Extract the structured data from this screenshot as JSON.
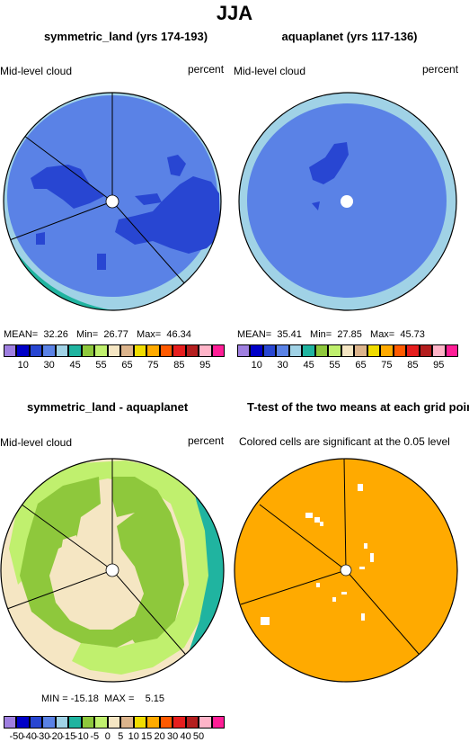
{
  "main_title": "JJA",
  "panels": [
    {
      "title": "symmetric_land (yrs 174-193)",
      "left_label": "Mid-level cloud",
      "right_label": "percent",
      "stats": {
        "mean_label": "MEAN=",
        "mean": "32.26",
        "min_label": "Min=",
        "min": "26.77",
        "max_label": "Max=",
        "max": "46.34"
      }
    },
    {
      "title": "aquaplanet (yrs 117-136)",
      "left_label": "Mid-level cloud",
      "right_label": "percent",
      "stats": {
        "mean_label": "MEAN=",
        "mean": "35.41",
        "min_label": "Min=",
        "min": "27.85",
        "max_label": "Max=",
        "max": "45.73"
      }
    },
    {
      "title": "symmetric_land - aquaplanet",
      "left_label": "Mid-level cloud",
      "right_label": "percent",
      "stats": {
        "min_label": "MIN =",
        "min": "-15.18",
        "max_label": "MAX =",
        "max": "5.15"
      }
    },
    {
      "title": "T-test of the two means at each grid point",
      "subtitle": "Colored cells are significant at the 0.05 level"
    }
  ],
  "colorbar_abs": {
    "colors": [
      "#9f7fe0",
      "#0000c8",
      "#2846d2",
      "#5a82e6",
      "#a0d2e6",
      "#20b4a0",
      "#8ec83c",
      "#c0f06e",
      "#f5e6c3",
      "#dcb48c",
      "#f0dc00",
      "#ffaa00",
      "#ff5a00",
      "#e61e1e",
      "#b41e1e",
      "#ffb4c8",
      "#ff1e96"
    ],
    "labels": [
      "10",
      "30",
      "45",
      "55",
      "65",
      "75",
      "85",
      "95"
    ]
  },
  "colorbar_diff": {
    "colors": [
      "#9f7fe0",
      "#0000c8",
      "#2846d2",
      "#5a82e6",
      "#a0d2e6",
      "#20b4a0",
      "#8ec83c",
      "#c0f06e",
      "#f5e6c3",
      "#dcb48c",
      "#f0dc00",
      "#ffaa00",
      "#ff5a00",
      "#e61e1e",
      "#b41e1e",
      "#ffb4c8",
      "#ff1e96"
    ],
    "labels": [
      "-50",
      "-40",
      "-30",
      "-20",
      "-15",
      "-10",
      "-5",
      "0",
      "5",
      "10",
      "15",
      "20",
      "30",
      "40",
      "50"
    ]
  },
  "map_colors": {
    "light_blue": "#a0d2e6",
    "mid_blue": "#5a82e6",
    "dark_blue": "#2846d2",
    "teal": "#20b4a0",
    "yellow": "#f0dc00",
    "green": "#8ec83c",
    "light_green": "#c0f06e",
    "cream": "#f5e6c3",
    "tan": "#dcb48c",
    "orange": "#ffaa00"
  }
}
